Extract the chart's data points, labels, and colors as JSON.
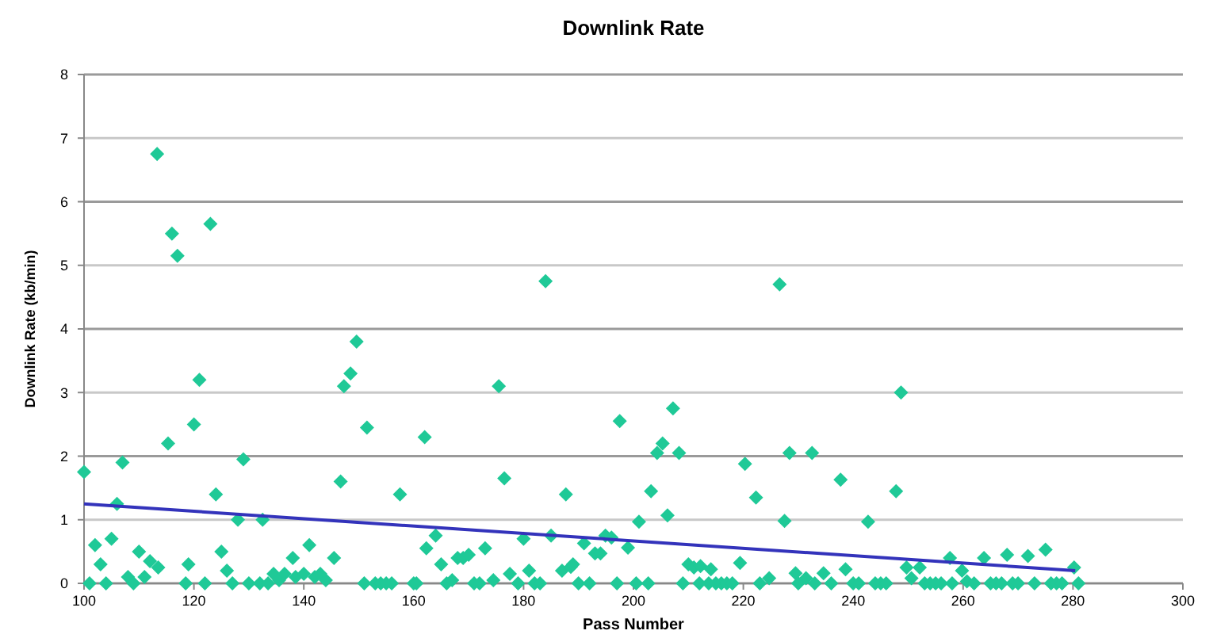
{
  "chart_data": {
    "type": "scatter",
    "title": "Downlink Rate",
    "xlabel": "Pass Number",
    "ylabel": "Downlink Rate (kb/min)",
    "marker": "diamond",
    "grid": "y",
    "xlim": [
      100,
      300
    ],
    "xticks": [
      100,
      120,
      140,
      160,
      180,
      200,
      220,
      240,
      260,
      280,
      300
    ],
    "ylim": [
      0,
      8
    ],
    "yticks": [
      0,
      1,
      2,
      3,
      4,
      5,
      6,
      7,
      8
    ],
    "series": [
      {
        "color": "#1fc997",
        "x": [
          100,
          101,
          102,
          103,
          104,
          105,
          106,
          107,
          108,
          109,
          110,
          111,
          112,
          113.3,
          113.5,
          115.3,
          116,
          117,
          118.5,
          119,
          120,
          121,
          122,
          123,
          124,
          125,
          126,
          127,
          128,
          129,
          130,
          132,
          132.5,
          133.5,
          134.5,
          135.5,
          136.5,
          138,
          138.5,
          140,
          141,
          142,
          143,
          144,
          145.5,
          146.7,
          147.3,
          148.5,
          149.6,
          151,
          151.5,
          153,
          154,
          155,
          156,
          157.5,
          160,
          160.5,
          162,
          162.3,
          164,
          165,
          166,
          167,
          168,
          169,
          170,
          171,
          172,
          173,
          174.5,
          175.5,
          176.5,
          177.5,
          179,
          180,
          181,
          182,
          183,
          184,
          185,
          187,
          187.7,
          188.6,
          189,
          190,
          191,
          192,
          193,
          194,
          194.9,
          196,
          197,
          197.5,
          199,
          200.5,
          201,
          202.7,
          203.2,
          204.3,
          205.3,
          206.2,
          207.2,
          208.3,
          209,
          210,
          211,
          212,
          212.2,
          213.7,
          214.1,
          215,
          216,
          217,
          218,
          219.4,
          220.3,
          222.3,
          223,
          224.7,
          226.6,
          227.5,
          228.4,
          229.5,
          230,
          231.4,
          232.5,
          233,
          234.6,
          236,
          237.7,
          238.6,
          240,
          241,
          242.7,
          244,
          245,
          246,
          247.8,
          248.7,
          249.7,
          250.6,
          252.1,
          253,
          254,
          255,
          256,
          257.6,
          258,
          259.8,
          260.7,
          262,
          263.8,
          265,
          266,
          267,
          268,
          269,
          270,
          271.8,
          273,
          275,
          276,
          277,
          278,
          280.2,
          281
        ],
        "values": [
          1.75,
          0,
          0.6,
          0.3,
          0,
          0.7,
          1.25,
          1.9,
          0.1,
          0,
          0.5,
          0.1,
          0.35,
          6.75,
          0.25,
          2.2,
          5.5,
          5.15,
          0,
          0.3,
          2.5,
          3.2,
          0,
          5.65,
          1.4,
          0.5,
          0.2,
          0,
          1.0,
          1.95,
          0,
          0,
          1.0,
          0,
          0.15,
          0.05,
          0.15,
          0.4,
          0.1,
          0.15,
          0.6,
          0.1,
          0.15,
          0.05,
          0.4,
          1.6,
          3.1,
          3.3,
          3.8,
          0,
          2.45,
          0,
          0,
          0,
          0,
          1.4,
          0,
          0,
          2.3,
          0.55,
          0.75,
          0.3,
          0,
          0.05,
          0.4,
          0.4,
          0.45,
          0,
          0,
          0.55,
          0.05,
          3.1,
          1.65,
          0.15,
          0,
          0.7,
          0.2,
          0,
          0,
          4.75,
          0.75,
          0.2,
          1.4,
          0.26,
          0.3,
          0,
          0.63,
          0,
          0.47,
          0.47,
          0.75,
          0.72,
          0,
          2.55,
          0.56,
          0,
          0.97,
          0,
          1.45,
          2.05,
          2.2,
          1.07,
          2.75,
          2.05,
          0,
          0.3,
          0.25,
          0,
          0.27,
          0,
          0.22,
          0,
          0,
          0,
          0,
          0.32,
          1.88,
          1.35,
          0,
          0.08,
          4.7,
          0.98,
          2.05,
          0.16,
          0,
          0.08,
          2.05,
          0,
          0.16,
          0,
          1.63,
          0.22,
          0,
          0,
          0.97,
          0,
          0,
          0,
          1.45,
          3.0,
          0.25,
          0.08,
          0.25,
          0,
          0,
          0,
          0,
          0.4,
          0,
          0.2,
          0.03,
          0,
          0.4,
          0,
          0,
          0,
          0.45,
          0,
          0,
          0.43,
          0,
          0.53,
          0,
          0,
          0,
          0.25,
          0
        ]
      },
      {
        "type": "line",
        "marker": "none",
        "color": "#3333bb",
        "x": [
          100,
          280.4
        ],
        "values": [
          1.25,
          0.2
        ]
      }
    ]
  }
}
